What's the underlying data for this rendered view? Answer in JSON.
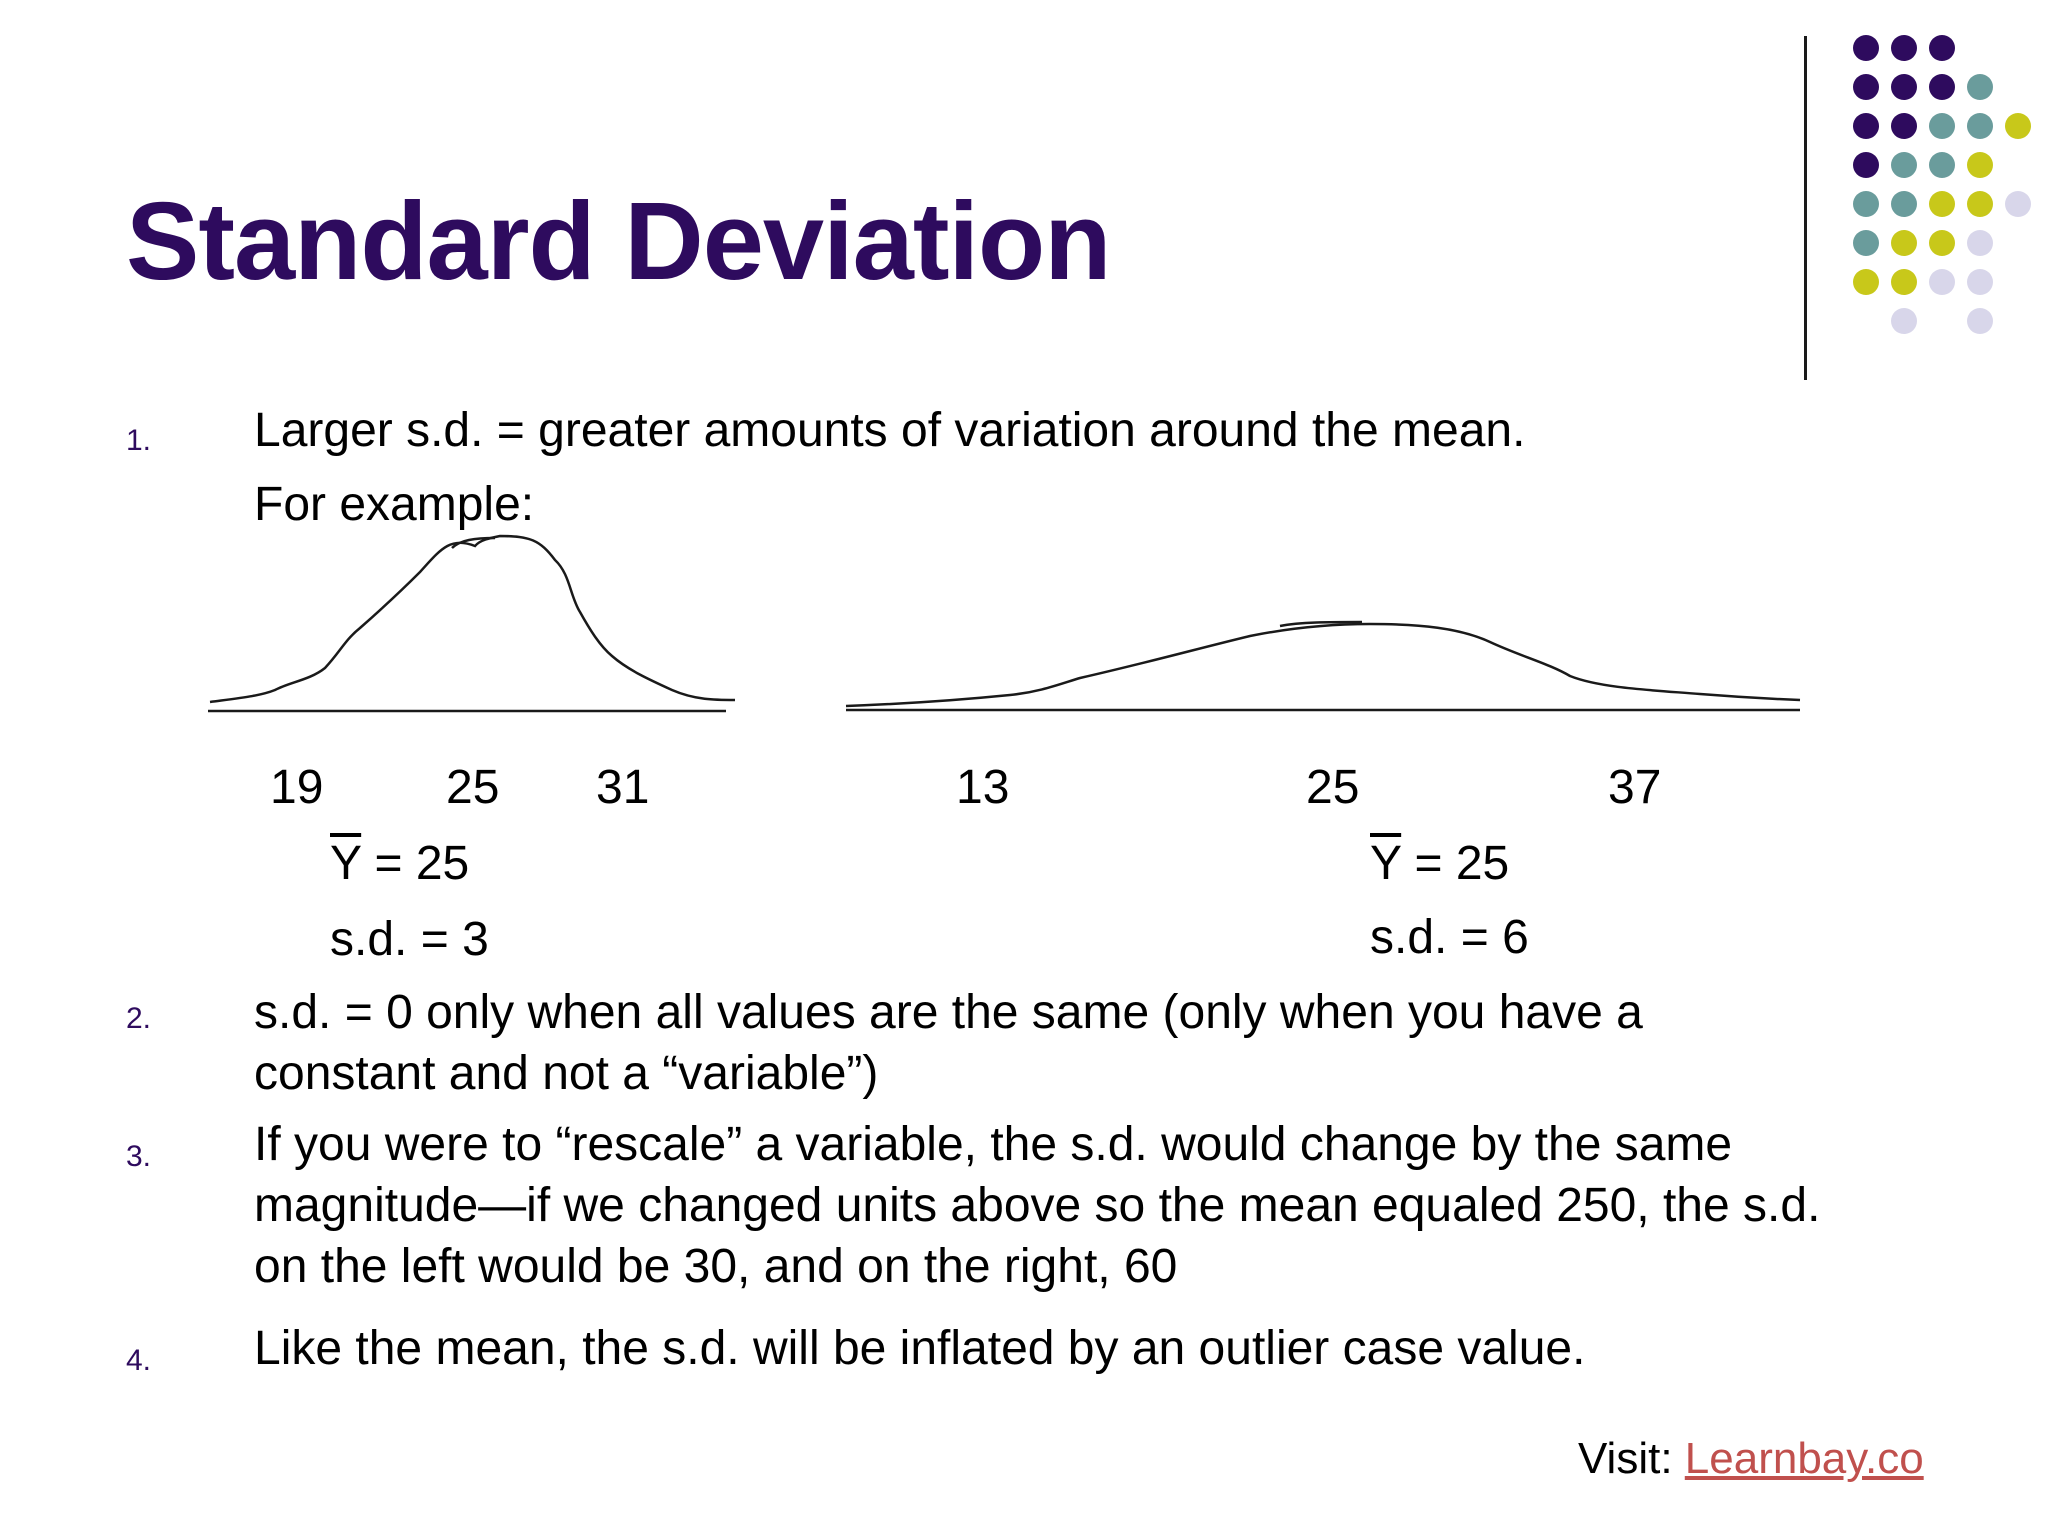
{
  "slide": {
    "title": "Standard Deviation",
    "colors": {
      "title": "#2e0b5e",
      "dot_purple": "#2e0b5e",
      "dot_teal": "#6a9c9c",
      "dot_yellow": "#c8c81a",
      "dot_lavender": "#d8d6ea",
      "link": "#c0504d"
    }
  },
  "items": [
    {
      "num": "1.",
      "lines": [
        "Larger s.d. = greater amounts of variation around the mean.",
        "For example:"
      ]
    },
    {
      "num": "2.",
      "lines": [
        "s.d. = 0 only when all values are the same (only when you have a",
        "constant and not a “variable”)"
      ]
    },
    {
      "num": "3.",
      "lines": [
        "If you were to “rescale” a variable, the s.d. would change by the same",
        "magnitude—if we changed units above so the mean equaled 250, the s.d.",
        "on the left would be 30, and on the right, 60"
      ]
    },
    {
      "num": "4.",
      "lines": [
        "Like the mean, the s.d. will be inflated by an outlier case value."
      ]
    }
  ],
  "example": {
    "left": {
      "ticks": [
        "19",
        "25",
        "31"
      ],
      "mean_symbol": "Y",
      "mean_rest": " = 25",
      "sd": "s.d. = 3"
    },
    "right": {
      "ticks": [
        "13",
        "25",
        "37"
      ],
      "mean_symbol": "Y",
      "mean_rest": " = 25",
      "sd": "s.d. = 6"
    }
  },
  "footer": {
    "visit_label": "Visit: ",
    "link_text": "Learnbay.co"
  }
}
